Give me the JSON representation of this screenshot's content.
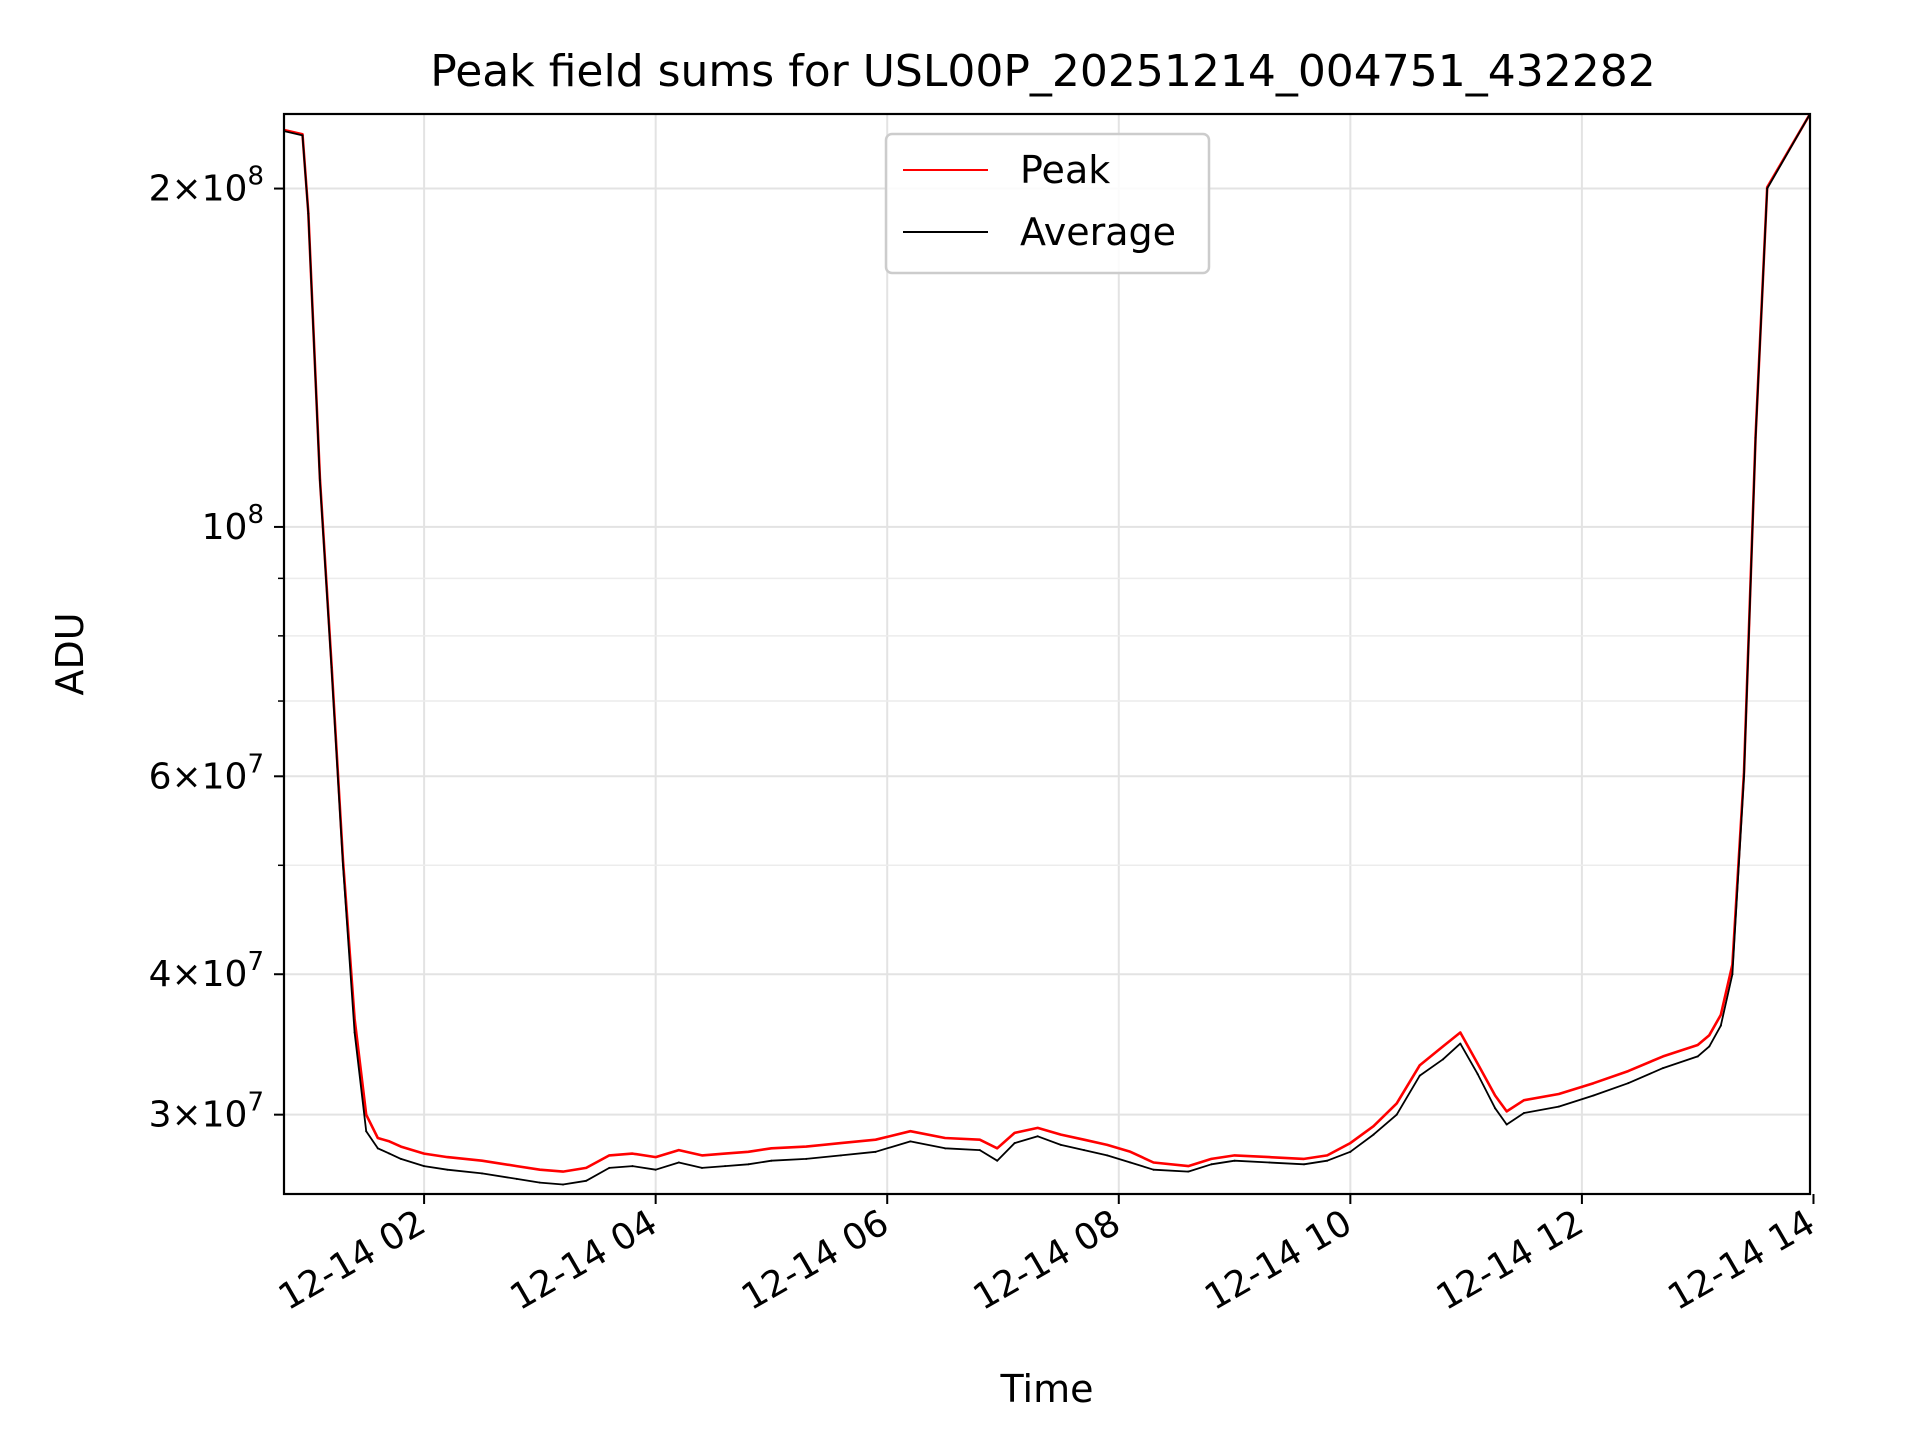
{
  "chart_data": {
    "type": "line",
    "title": "Peak field sums for USL00P_20251214_004751_432282",
    "xlabel": "Time",
    "ylabel": "ADU",
    "yscale": "log",
    "ylim": [
      25500000,
      233000000
    ],
    "xlim_hours": [
      0.79,
      13.97
    ],
    "grid": true,
    "legend": {
      "position": "top-center",
      "entries": [
        {
          "name": "Peak",
          "color": "#ff0000"
        },
        {
          "name": "Average",
          "color": "#000000"
        }
      ]
    },
    "x_ticks": [
      {
        "value": 2,
        "label": "12-14 02"
      },
      {
        "value": 4,
        "label": "12-14 04"
      },
      {
        "value": 6,
        "label": "12-14 06"
      },
      {
        "value": 8,
        "label": "12-14 08"
      },
      {
        "value": 10,
        "label": "12-14 10"
      },
      {
        "value": 12,
        "label": "12-14 12"
      },
      {
        "value": 14,
        "label": "12-14 14"
      }
    ],
    "y_major_ticks": [
      {
        "value": 30000000,
        "mantissa": "3",
        "exp": "7"
      },
      {
        "value": 40000000,
        "mantissa": "4",
        "exp": "7"
      },
      {
        "value": 60000000,
        "mantissa": "6",
        "exp": "7"
      },
      {
        "value": 100000000,
        "mantissa": "",
        "exp": "8"
      },
      {
        "value": 200000000,
        "mantissa": "2",
        "exp": "8"
      }
    ],
    "y_minor_ticks": [
      50000000,
      70000000,
      80000000,
      90000000
    ],
    "series": [
      {
        "name": "Average",
        "color": "#000000",
        "x_hours": [
          0.79,
          0.95,
          1.0,
          1.1,
          1.2,
          1.3,
          1.4,
          1.5,
          1.6,
          1.7,
          1.8,
          2.0,
          2.2,
          2.5,
          2.8,
          3.0,
          3.2,
          3.4,
          3.6,
          3.8,
          4.0,
          4.2,
          4.4,
          4.6,
          4.8,
          5.0,
          5.3,
          5.6,
          5.9,
          6.2,
          6.5,
          6.8,
          6.95,
          7.1,
          7.3,
          7.5,
          7.7,
          7.9,
          8.1,
          8.3,
          8.6,
          8.8,
          9.0,
          9.3,
          9.6,
          9.8,
          10.0,
          10.2,
          10.4,
          10.6,
          10.8,
          10.95,
          11.1,
          11.25,
          11.35,
          11.5,
          11.8,
          12.1,
          12.4,
          12.7,
          13.0,
          13.1,
          13.2,
          13.3,
          13.4,
          13.5,
          13.6,
          13.97
        ],
        "y_adu": [
          225000000,
          223000000,
          190000000,
          110000000,
          75000000,
          50000000,
          35500000,
          29000000,
          28000000,
          27700000,
          27400000,
          27000000,
          26800000,
          26600000,
          26300000,
          26100000,
          26000000,
          26200000,
          26900000,
          27000000,
          26800000,
          27200000,
          26900000,
          27000000,
          27100000,
          27300000,
          27400000,
          27600000,
          27800000,
          28400000,
          28000000,
          27900000,
          27300000,
          28300000,
          28700000,
          28200000,
          27900000,
          27600000,
          27200000,
          26800000,
          26700000,
          27100000,
          27300000,
          27200000,
          27100000,
          27300000,
          27800000,
          28800000,
          30000000,
          32500000,
          33600000,
          34700000,
          32600000,
          30400000,
          29400000,
          30100000,
          30500000,
          31200000,
          32000000,
          33000000,
          33800000,
          34500000,
          36000000,
          40000000,
          60000000,
          120000000,
          200000000,
          233000000
        ]
      },
      {
        "name": "Peak",
        "color": "#ff0000",
        "x_hours": [
          0.79,
          0.95,
          1.0,
          1.1,
          1.2,
          1.3,
          1.4,
          1.5,
          1.6,
          1.7,
          1.8,
          2.0,
          2.2,
          2.5,
          2.8,
          3.0,
          3.2,
          3.4,
          3.6,
          3.8,
          4.0,
          4.2,
          4.4,
          4.6,
          4.8,
          5.0,
          5.3,
          5.6,
          5.9,
          6.2,
          6.5,
          6.8,
          6.95,
          7.1,
          7.3,
          7.5,
          7.7,
          7.9,
          8.1,
          8.3,
          8.6,
          8.8,
          9.0,
          9.3,
          9.6,
          9.8,
          10.0,
          10.2,
          10.4,
          10.6,
          10.8,
          10.95,
          11.1,
          11.25,
          11.35,
          11.5,
          11.8,
          12.1,
          12.4,
          12.7,
          13.0,
          13.1,
          13.2,
          13.3,
          13.4,
          13.5,
          13.6,
          13.97
        ],
        "y_adu": [
          225500000,
          223500000,
          190500000,
          110500000,
          75500000,
          50500000,
          36500000,
          30000000,
          28600000,
          28400000,
          28100000,
          27700000,
          27500000,
          27300000,
          27000000,
          26800000,
          26700000,
          26900000,
          27600000,
          27700000,
          27500000,
          27900000,
          27600000,
          27700000,
          27800000,
          28000000,
          28100000,
          28300000,
          28500000,
          29000000,
          28600000,
          28500000,
          28000000,
          28900000,
          29200000,
          28800000,
          28500000,
          28200000,
          27800000,
          27200000,
          27000000,
          27400000,
          27600000,
          27500000,
          27400000,
          27600000,
          28300000,
          29300000,
          30700000,
          33200000,
          34500000,
          35500000,
          33300000,
          31200000,
          30200000,
          30900000,
          31300000,
          32000000,
          32800000,
          33800000,
          34600000,
          35300000,
          36800000,
          40800000,
          60500000,
          120500000,
          200500000,
          233000000
        ]
      }
    ]
  }
}
